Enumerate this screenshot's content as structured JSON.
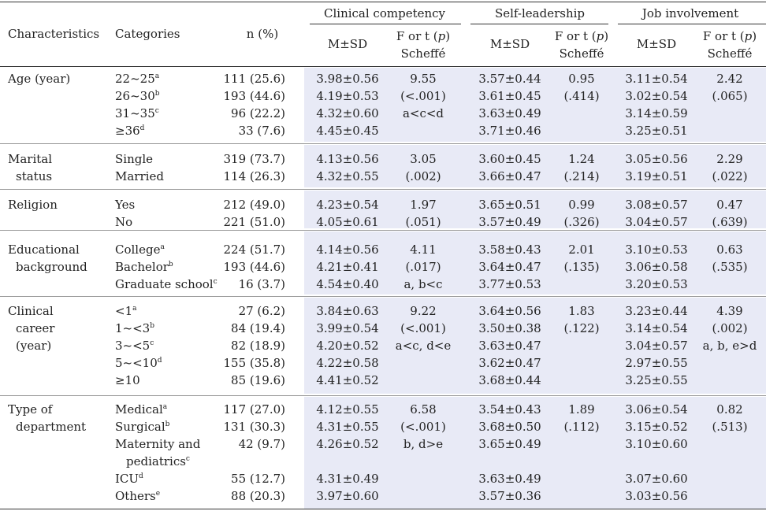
{
  "header": {
    "characteristics": "Characteristics",
    "categories": "Categories",
    "n_pct": "n (%)",
    "group1": "Clinical competency",
    "group2": "Self-leadership",
    "group3": "Job involvement",
    "msd": "M±SD",
    "f_or_t_prefix": "F or t (",
    "p": "p",
    "f_or_t_suffix": ")",
    "scheffe": "Scheffé"
  },
  "sections": [
    {
      "characteristic": [
        "Age (year)"
      ],
      "rows": [
        {
          "cat": "22~25",
          "sup": "a",
          "n": "111 (25.6)",
          "cc": "3.98±0.56",
          "sl": "3.57±0.44",
          "ji": "3.11±0.54"
        },
        {
          "cat": "26~30",
          "sup": "b",
          "n": "193 (44.6)",
          "cc": "4.19±0.53",
          "sl": "3.61±0.45",
          "ji": "3.02±0.54"
        },
        {
          "cat": "31~35",
          "sup": "c",
          "n": "96 (22.2)",
          "cc": "4.32±0.60",
          "sl": "3.63±0.49",
          "ji": "3.14±0.59"
        },
        {
          "cat": "≥36",
          "sup": "d",
          "n": "33 (7.6)",
          "cc": "4.45±0.45",
          "sl": "3.71±0.46",
          "ji": "3.25±0.51"
        }
      ],
      "cc_stat": [
        "9.55",
        "(<.001)",
        "a<c<d"
      ],
      "sl_stat": [
        "0.95",
        "(.414)"
      ],
      "ji_stat": [
        "2.42",
        "(.065)"
      ]
    },
    {
      "characteristic": [
        "Marital",
        "status"
      ],
      "rows": [
        {
          "cat": "Single",
          "sup": "",
          "n": "319 (73.7)",
          "cc": "4.13±0.56",
          "sl": "3.60±0.45",
          "ji": "3.05±0.56"
        },
        {
          "cat": "Married",
          "sup": "",
          "n": "114 (26.3)",
          "cc": "4.32±0.55",
          "sl": "3.66±0.47",
          "ji": "3.19±0.51"
        }
      ],
      "cc_stat": [
        "3.05",
        "(.002)"
      ],
      "sl_stat": [
        "1.24",
        "(.214)"
      ],
      "ji_stat": [
        "2.29",
        "(.022)"
      ]
    },
    {
      "characteristic": [
        "Religion"
      ],
      "rows": [
        {
          "cat": "Yes",
          "sup": "",
          "n": "212 (49.0)",
          "cc": "4.23±0.54",
          "sl": "3.65±0.51",
          "ji": "3.08±0.57"
        },
        {
          "cat": "No",
          "sup": "",
          "n": "221 (51.0)",
          "cc": "4.05±0.61",
          "sl": "3.57±0.49",
          "ji": "3.04±0.57"
        }
      ],
      "cc_stat": [
        "1.97",
        "(.051)"
      ],
      "sl_stat": [
        "0.99",
        "(.326)"
      ],
      "ji_stat": [
        "0.47",
        "(.639)"
      ]
    },
    {
      "characteristic": [
        "Educational",
        "background"
      ],
      "rows": [
        {
          "cat": "College",
          "sup": "a",
          "n": "224 (51.7)",
          "cc": "4.14±0.56",
          "sl": "3.58±0.43",
          "ji": "3.10±0.53"
        },
        {
          "cat": "Bachelor",
          "sup": "b",
          "n": "193 (44.6)",
          "cc": "4.21±0.41",
          "sl": "3.64±0.47",
          "ji": "3.06±0.58"
        },
        {
          "cat": "Graduate school",
          "sup": "c",
          "n": "16 (3.7)",
          "cc": "4.54±0.40",
          "sl": "3.77±0.53",
          "ji": "3.20±0.53"
        }
      ],
      "cc_stat": [
        "4.11",
        "(.017)",
        "a, b<c"
      ],
      "sl_stat": [
        "2.01",
        "(.135)"
      ],
      "ji_stat": [
        "0.63",
        "(.535)"
      ]
    },
    {
      "characteristic": [
        "Clinical",
        "career",
        "(year)"
      ],
      "rows": [
        {
          "cat": "<1",
          "sup": "a",
          "n": "27 (6.2)",
          "cc": "3.84±0.63",
          "sl": "3.64±0.56",
          "ji": "3.23±0.44"
        },
        {
          "cat": "1~<3",
          "sup": "b",
          "n": "84 (19.4)",
          "cc": "3.99±0.54",
          "sl": "3.50±0.38",
          "ji": "3.14±0.54"
        },
        {
          "cat": "3~<5",
          "sup": "c",
          "n": "82 (18.9)",
          "cc": "4.20±0.52",
          "sl": "3.63±0.47",
          "ji": "3.04±0.57"
        },
        {
          "cat": "5~<10",
          "sup": "d",
          "n": "155 (35.8)",
          "cc": "4.22±0.58",
          "sl": "3.62±0.47",
          "ji": "2.97±0.55"
        },
        {
          "cat": "≥10",
          "sup": "",
          "n": "85 (19.6)",
          "cc": "4.41±0.52",
          "sl": "3.68±0.44",
          "ji": "3.25±0.55"
        }
      ],
      "cc_stat": [
        "9.22",
        "(<.001)",
        "a<c, d<e"
      ],
      "sl_stat": [
        "1.83",
        "(.122)"
      ],
      "ji_stat": [
        "4.39",
        "(.002)",
        "a, b, e>d"
      ]
    },
    {
      "characteristic": [
        "Type of",
        "department"
      ],
      "rows": [
        {
          "cat": "Medical",
          "sup": "a",
          "n": "117 (27.0)",
          "cc": "4.12±0.55",
          "sl": "3.54±0.43",
          "ji": "3.06±0.54"
        },
        {
          "cat": "Surgical",
          "sup": "b",
          "n": "131 (30.3)",
          "cc": "4.31±0.55",
          "sl": "3.68±0.50",
          "ji": "3.15±0.52"
        },
        {
          "cat": "Maternity and",
          "cat2": "pediatrics",
          "sup": "c",
          "n": "42 (9.7)",
          "cc": "4.26±0.52",
          "sl": "3.65±0.49",
          "ji": "3.10±0.60"
        },
        {
          "cat": "ICU",
          "sup": "d",
          "n": "55 (12.7)",
          "cc": "4.31±0.49",
          "sl": "3.63±0.49",
          "ji": "3.07±0.60"
        },
        {
          "cat": "Others",
          "sup": "e",
          "n": "88 (20.3)",
          "cc": "3.97±0.60",
          "sl": "3.57±0.36",
          "ji": "3.03±0.56"
        }
      ],
      "cc_stat": [
        "6.58",
        "(<.001)",
        "b, d>e"
      ],
      "sl_stat": [
        "1.89",
        "(.112)"
      ],
      "ji_stat": [
        "0.82",
        "(.513)"
      ]
    }
  ]
}
